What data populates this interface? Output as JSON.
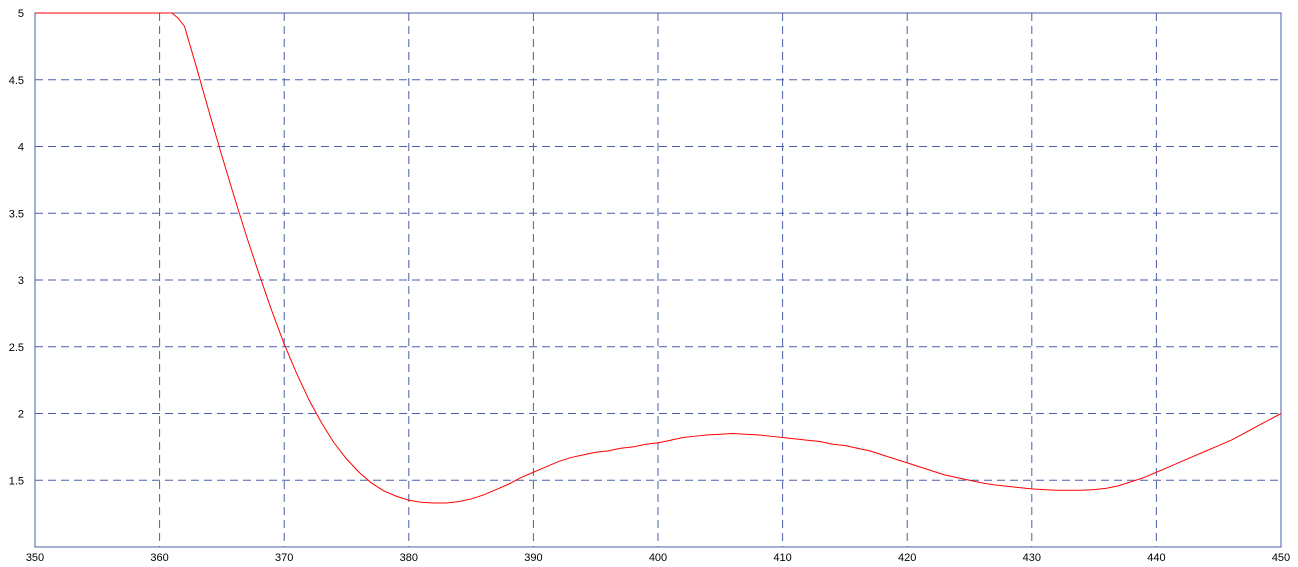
{
  "chart_data": {
    "type": "line",
    "title": "",
    "xlabel": "",
    "ylabel": "",
    "xlim": [
      350,
      450
    ],
    "ylim": [
      1.0,
      5.0
    ],
    "grid": true,
    "x_ticks": [
      350,
      360,
      370,
      380,
      390,
      400,
      410,
      420,
      430,
      440,
      450
    ],
    "y_ticks": [
      1.5,
      2,
      2.5,
      3,
      3.5,
      4,
      4.5,
      5
    ],
    "x_tick_labels": [
      "350",
      "360",
      "370",
      "380",
      "390",
      "400",
      "410",
      "420",
      "430",
      "440",
      "450"
    ],
    "y_tick_labels": [
      "1.5",
      "2",
      "2.5",
      "3",
      "3.5",
      "4",
      "4.5",
      "5"
    ],
    "colors": {
      "line": "#ff0000",
      "grid": "#4a5fa8",
      "frame": "#4a5fa8"
    },
    "series": [
      {
        "x": [
          350,
          355,
          360,
          361,
          361.5,
          362,
          363,
          364,
          365,
          366,
          367,
          368,
          369,
          370,
          371,
          372,
          373,
          374,
          375,
          376,
          377,
          378,
          379,
          380,
          381,
          382,
          383,
          384,
          385,
          386,
          387,
          388,
          389,
          390,
          391,
          392,
          393,
          394,
          395,
          396,
          397,
          398,
          399,
          400,
          401,
          402,
          403,
          404,
          405,
          406,
          407,
          408,
          409,
          410,
          411,
          412,
          413,
          414,
          415,
          416,
          417,
          418,
          419,
          420,
          421,
          422,
          423,
          424,
          425,
          426,
          427,
          428,
          429,
          430,
          431,
          432,
          433,
          434,
          435,
          436,
          437,
          438,
          439,
          440,
          441,
          442,
          443,
          444,
          445,
          446,
          447,
          448,
          449,
          450
        ],
        "y": [
          5.0,
          5.0,
          5.0,
          5.0,
          4.96,
          4.9,
          4.58,
          4.25,
          3.93,
          3.62,
          3.32,
          3.04,
          2.77,
          2.52,
          2.3,
          2.1,
          1.93,
          1.78,
          1.66,
          1.56,
          1.48,
          1.42,
          1.38,
          1.35,
          1.335,
          1.33,
          1.33,
          1.34,
          1.36,
          1.39,
          1.43,
          1.47,
          1.52,
          1.56,
          1.6,
          1.64,
          1.67,
          1.69,
          1.71,
          1.72,
          1.74,
          1.75,
          1.77,
          1.78,
          1.8,
          1.82,
          1.83,
          1.84,
          1.845,
          1.85,
          1.845,
          1.84,
          1.83,
          1.82,
          1.81,
          1.8,
          1.79,
          1.77,
          1.76,
          1.74,
          1.72,
          1.69,
          1.66,
          1.63,
          1.6,
          1.57,
          1.54,
          1.52,
          1.5,
          1.48,
          1.465,
          1.455,
          1.445,
          1.435,
          1.43,
          1.425,
          1.425,
          1.425,
          1.43,
          1.44,
          1.46,
          1.49,
          1.52,
          1.56,
          1.6,
          1.64,
          1.68,
          1.72,
          1.76,
          1.8,
          1.85,
          1.9,
          1.95,
          2.0
        ]
      }
    ]
  }
}
